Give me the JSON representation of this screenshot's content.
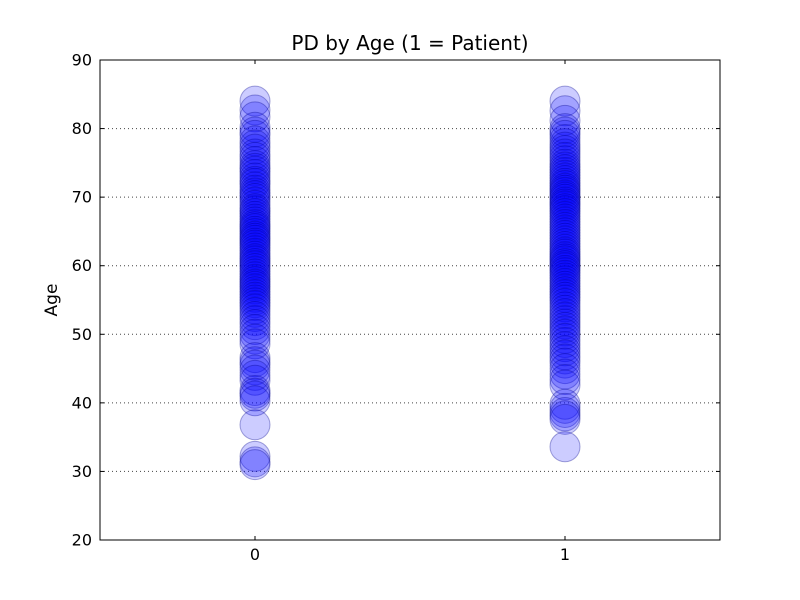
{
  "figure": {
    "background": "#ffffff"
  },
  "chart_data": {
    "type": "scatter",
    "title": "PD by Age (1 = Patient)",
    "xlabel": "",
    "ylabel": "Age",
    "xlim": [
      -0.5,
      1.5
    ],
    "ylim": [
      20,
      90
    ],
    "xticks": {
      "values": [
        0,
        1
      ],
      "labels": [
        "0",
        "1"
      ]
    },
    "yticks": {
      "values": [
        20,
        30,
        40,
        50,
        60,
        70,
        80,
        90
      ],
      "labels": [
        "20",
        "30",
        "40",
        "50",
        "60",
        "70",
        "80",
        "90"
      ]
    },
    "gridlines_y": [
      30,
      40,
      50,
      60,
      70,
      80
    ],
    "grid_style": "dotted",
    "legend": "none",
    "marker": {
      "shape": "circle",
      "radius_px": 15,
      "face_color": "#0000ff",
      "face_opacity": 0.2,
      "edge_color": "#00008c",
      "edge_opacity": 0.35,
      "edge_width": 1
    },
    "series": [
      {
        "name": "0",
        "x": 0,
        "ages": [
          84,
          82.7,
          81.7,
          80.2,
          79.5,
          79,
          78.2,
          77.6,
          77,
          76.3,
          75.8,
          75.2,
          74.6,
          74.2,
          73.8,
          73.3,
          72.8,
          72.3,
          72,
          71.5,
          71,
          70.6,
          70.2,
          69.8,
          69.3,
          68.8,
          68.3,
          68,
          67.6,
          67.2,
          66.8,
          66.4,
          66,
          65.7,
          65.4,
          65,
          64.7,
          64.3,
          64,
          63.7,
          63.3,
          63,
          62.6,
          62.2,
          61.8,
          61.4,
          61,
          60.7,
          60.3,
          60,
          59.6,
          59.2,
          58.8,
          58.4,
          58,
          57.7,
          57.3,
          57,
          56.6,
          56.2,
          55.8,
          55.4,
          55,
          54.6,
          54.2,
          53.7,
          53.2,
          52.6,
          52,
          51.4,
          50.7,
          50,
          49.3,
          48.6,
          46.6,
          46,
          45.5,
          44.8,
          44,
          43.3,
          41.8,
          41.4,
          41,
          40.3,
          36.8,
          32.2,
          31.4,
          31
        ]
      },
      {
        "name": "1",
        "x": 1,
        "ages": [
          84,
          82.6,
          81.2,
          80,
          79.5,
          79,
          78.4,
          77.8,
          77.3,
          76.8,
          76.3,
          75.8,
          75.3,
          74.8,
          74.4,
          74,
          73.6,
          73.2,
          72.8,
          72.4,
          72,
          71.7,
          71.3,
          71,
          70.7,
          70.3,
          70,
          69.7,
          69.3,
          69,
          68.7,
          68.3,
          68,
          67.6,
          67.2,
          66.8,
          66.4,
          66,
          65.6,
          65.2,
          64.8,
          64.4,
          64,
          63.6,
          63.2,
          62.8,
          62.4,
          62,
          61.7,
          61.3,
          61,
          60.7,
          60.3,
          60,
          59.7,
          59.3,
          59,
          58.6,
          58.2,
          57.8,
          57.4,
          57,
          56.6,
          56.2,
          55.8,
          55.4,
          55,
          54.5,
          54,
          53.5,
          53,
          52.5,
          52,
          51.5,
          51,
          50.5,
          50,
          49.4,
          48.8,
          48.2,
          47.6,
          47,
          46.4,
          45.8,
          45,
          44.2,
          43.4,
          42.6,
          39.8,
          39.2,
          38.6,
          38.1,
          37.6,
          33.6
        ]
      }
    ]
  }
}
